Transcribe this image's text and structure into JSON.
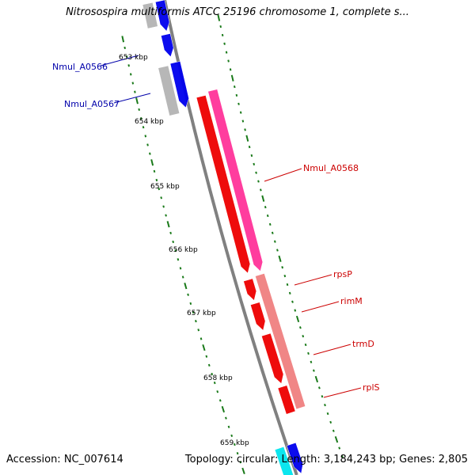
{
  "title": "Nitrosospira multiformis ATCC 25196 chromosome 1, complete s...",
  "accession_text": "Accession: NC_007614",
  "summary_text": "Topology: circular; Length: 3,184,243 bp; Genes: 2,805",
  "colors": {
    "backbone": "#808080",
    "tick": "#1a7a1a",
    "label_blue": "#0000aa",
    "label_red": "#cc0000",
    "gene_blue": "#0000ee",
    "gene_gray": "#b4b4b4",
    "gene_red": "#ee0000",
    "gene_magenta": "#ff3399",
    "gene_pink": "#f08080",
    "gene_cyan": "#00e5ee"
  },
  "scale_labels": [
    "653 kbp",
    "654 kbp",
    "655 kbp",
    "656 kbp",
    "657 kbp",
    "658 kbp",
    "659 kbp"
  ],
  "gene_labels": [
    {
      "text": "Nmul_A0566",
      "color": "label_blue"
    },
    {
      "text": "Nmul_A0567",
      "color": "label_blue"
    },
    {
      "text": "Nmul_A0568",
      "color": "label_red"
    },
    {
      "text": "rpsP",
      "color": "label_red"
    },
    {
      "text": "rimM",
      "color": "label_red"
    },
    {
      "text": "trmD",
      "color": "label_red"
    },
    {
      "text": "rplS",
      "color": "label_red"
    }
  ]
}
